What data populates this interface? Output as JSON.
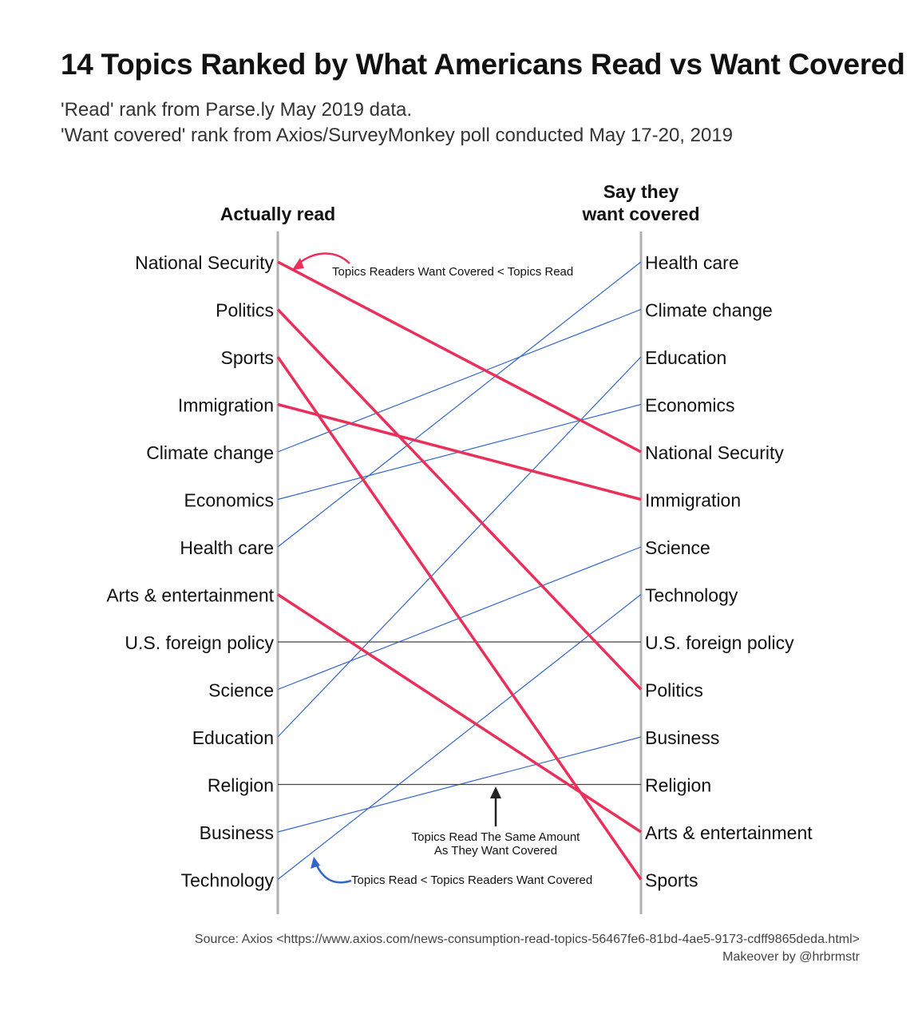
{
  "title": "14 Topics Ranked by What Americans Read vs Want Covered",
  "subtitle_line1": "'Read' rank from Parse.ly May 2019 data.",
  "subtitle_line2": "'Want covered' rank from Axios/SurveyMonkey poll conducted May 17-20, 2019",
  "left_header": "Actually read",
  "right_header_line1": "Say they",
  "right_header_line2": "want covered",
  "source_line1": "Source: Axios <https://www.axios.com/news-consumption-read-topics-56467fe6-81bd-4ae5-9173-cdff9865deda.html>",
  "source_line2": "Makeover by @hrbrmstr",
  "colors": {
    "read_more": "#e8305a",
    "want_more": "#3366cc",
    "same": "#444444",
    "axis": "#b0b0b0"
  },
  "chart_data": {
    "type": "slope",
    "read_order": [
      "National Security",
      "Politics",
      "Sports",
      "Immigration",
      "Climate change",
      "Economics",
      "Health care",
      "Arts & entertainment",
      "U.S. foreign policy",
      "Science",
      "Education",
      "Religion",
      "Business",
      "Technology"
    ],
    "want_order": [
      "Health care",
      "Climate change",
      "Education",
      "Economics",
      "National Security",
      "Immigration",
      "Science",
      "Technology",
      "U.S. foreign policy",
      "Politics",
      "Business",
      "Religion",
      "Arts & entertainment",
      "Sports"
    ],
    "annotations": {
      "read_more": "Topics Readers Want Covered < Topics Read",
      "same_line1": "Topics Read The Same Amount",
      "same_line2": "As They Want Covered",
      "want_more": "Topics Read < Topics Readers Want Covered"
    }
  }
}
